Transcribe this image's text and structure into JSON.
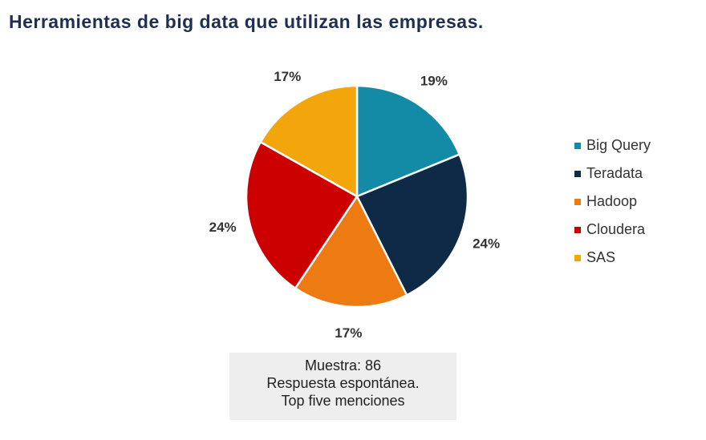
{
  "title": "Herramientas de big data que utilizan las empresas.",
  "chart_data": {
    "type": "pie",
    "title": "Herramientas de big data que utilizan las empresas.",
    "categories": [
      "Big Query",
      "Teradata",
      "Hadoop",
      "Cloudera",
      "SAS"
    ],
    "values": [
      19,
      24,
      17,
      24,
      17
    ],
    "labels": [
      "19%",
      "24%",
      "17%",
      "24%",
      "17%"
    ],
    "colors": [
      "#138aa6",
      "#0e2a47",
      "#ee7a12",
      "#cc0000",
      "#f2a60c"
    ],
    "legend_placement": "right"
  },
  "note": {
    "lines": [
      "Muestra: 86",
      "Respuesta espontánea.",
      "Top five menciones"
    ]
  }
}
